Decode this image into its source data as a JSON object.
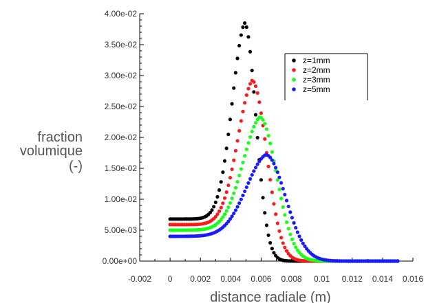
{
  "chart_data": {
    "type": "scatter",
    "xlabel": "distance radiale (m)",
    "ylabel": [
      "fraction",
      "volumique",
      "(-)"
    ],
    "xlim": [
      -0.002,
      0.016
    ],
    "ylim": [
      0,
      0.04
    ],
    "xticks": [
      "-0.002",
      "0",
      "0.002",
      "0.004",
      "0.006",
      "0.008",
      "0.01",
      "0.012",
      "0.014",
      "0.016"
    ],
    "yticks": [
      "0.00e+00",
      "5.00e-03",
      "1.00e-02",
      "1.50e-02",
      "2.00e-02",
      "2.50e-02",
      "3.00e-02",
      "3.50e-02",
      "4.00e-02"
    ],
    "grid": false,
    "legend_position": "top-right",
    "series": [
      {
        "name": "z=1mm",
        "color": "#000000",
        "base": 0.0068,
        "peak": 0.0385,
        "peak_x": 0.0049,
        "left_width": 0.00095,
        "right_width": 0.00075,
        "tail_rate": 0.0006
      },
      {
        "name": "z=2mm",
        "color": "#ff1a1a",
        "base": 0.0059,
        "peak": 0.0292,
        "peak_x": 0.0054,
        "left_width": 0.0011,
        "right_width": 0.00095,
        "tail_rate": 0.0008
      },
      {
        "name": "z=3mm",
        "color": "#1aff1a",
        "base": 0.005,
        "peak": 0.0233,
        "peak_x": 0.0059,
        "left_width": 0.0013,
        "right_width": 0.0011,
        "tail_rate": 0.0009
      },
      {
        "name": "z=5mm",
        "color": "#1a1aff",
        "base": 0.004,
        "peak": 0.0172,
        "peak_x": 0.0063,
        "left_width": 0.0015,
        "right_width": 0.0013,
        "tail_rate": 0.001
      }
    ],
    "x_start": 0,
    "x_end": 0.015,
    "point_spacing": 0.00012
  }
}
